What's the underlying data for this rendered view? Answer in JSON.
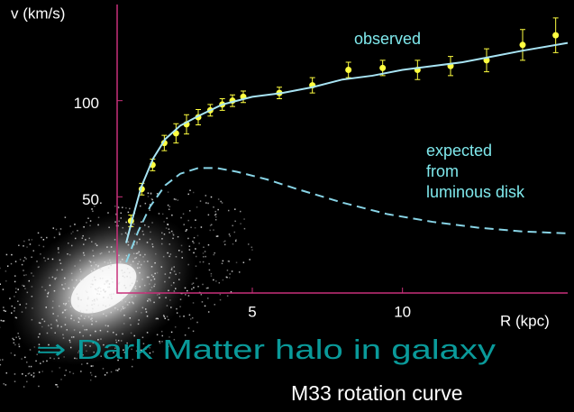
{
  "chart_data": {
    "type": "scatter",
    "y_label": "v (km/s)",
    "x_label": "R (kpc)",
    "conclusion": "⇒ Dark Matter halo in galaxy",
    "caption": "M33 rotation curve",
    "xlim": [
      0.5,
      15.5
    ],
    "xticks": [
      5,
      10
    ],
    "ylim": [
      0,
      150
    ],
    "yticks": [
      50,
      100
    ],
    "axis_color": "#c8307a",
    "series": [
      {
        "name": "observed",
        "color": "#ffff40",
        "label_color": "#7fe8ec",
        "x": [
          0.96,
          1.32,
          1.68,
          2.07,
          2.46,
          2.81,
          3.2,
          3.6,
          4.0,
          4.34,
          4.7,
          5.9,
          7.0,
          8.2,
          9.34,
          10.5,
          11.6,
          12.8,
          14.0,
          15.1
        ],
        "values": [
          37.5,
          54,
          66.6,
          78,
          83,
          87.7,
          91.4,
          95,
          98,
          100,
          102,
          104,
          108,
          116,
          117,
          116,
          118,
          121,
          129,
          134
        ],
        "errors": [
          3,
          3,
          3,
          4,
          5,
          5,
          4,
          3,
          3,
          3,
          3,
          3,
          4,
          4,
          4,
          5,
          5,
          6,
          8,
          9
        ]
      },
      {
        "color": "#a8e4f4",
        "x": [
          0.8,
          1.0,
          1.3,
          1.7,
          2.1,
          2.6,
          3.2,
          4.0,
          5.0,
          6.0,
          7.0,
          8.0,
          9.0,
          10.0,
          11.0,
          12.0,
          13.0,
          14.0,
          15.5
        ],
        "values": [
          26,
          38,
          55,
          70,
          80,
          87,
          92,
          98,
          102,
          104,
          107,
          111,
          113,
          116,
          118,
          120,
          123,
          126,
          130
        ]
      },
      {
        "name": [
          "expected",
          "from",
          "luminous disk"
        ],
        "color": "#88d4e6",
        "label_color": "#7fe8ec",
        "dashed": true,
        "x": [
          0.8,
          1.2,
          1.6,
          2.1,
          2.6,
          3.2,
          3.8,
          4.5,
          5.5,
          6.5,
          8.0,
          9.5,
          11.0,
          12.5,
          14.0,
          15.5
        ],
        "values": [
          16,
          32,
          45,
          56,
          62,
          65,
          65,
          63,
          59,
          54,
          47,
          41,
          37,
          34,
          32,
          31
        ]
      }
    ],
    "conclusion_color": "#0a9a9a"
  }
}
